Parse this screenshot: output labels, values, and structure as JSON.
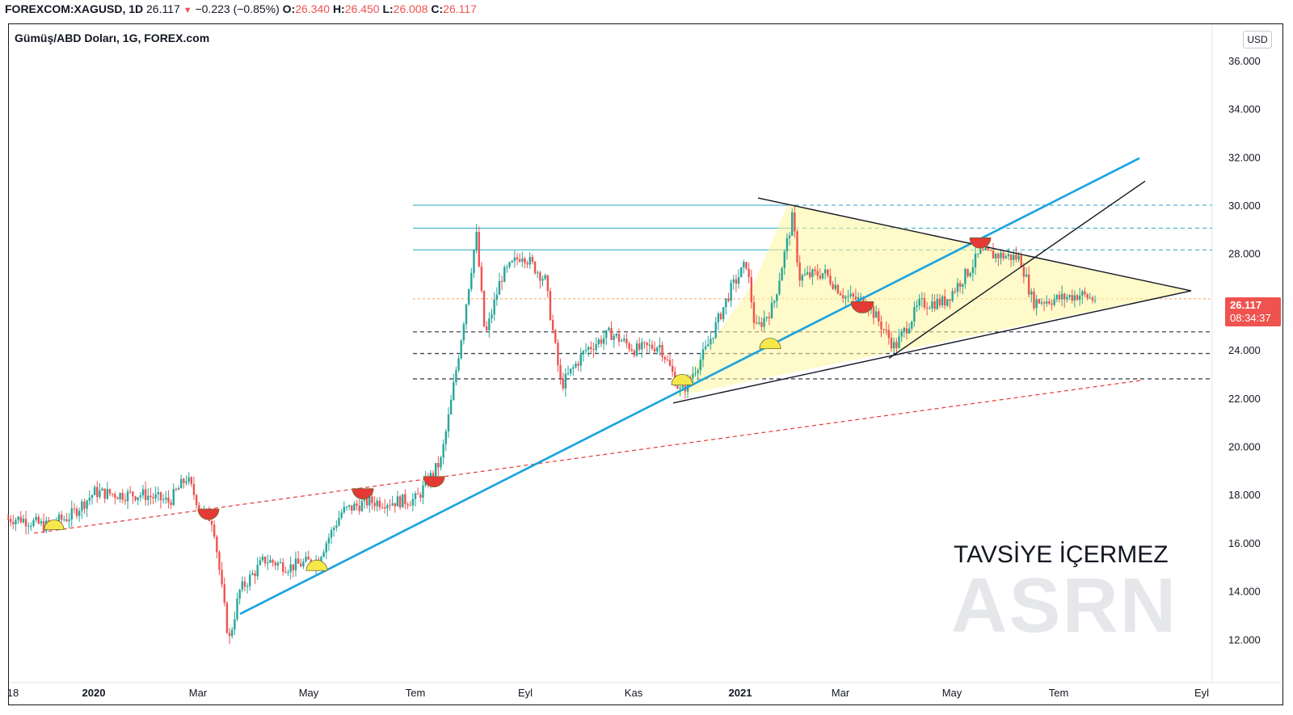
{
  "header": {
    "symbol": "FOREXCOM:XAGUSD, 1D",
    "last": "26.117",
    "change": "−0.223 (−0.85%)",
    "open_label": "O:",
    "open": "26.340",
    "high_label": "H:",
    "high": "26.450",
    "low_label": "L:",
    "low": "26.008",
    "close_label": "C:",
    "close": "26.117"
  },
  "chart_title": "Gümüş/ABD Doları, 1G, FOREX.com",
  "currency": "USD",
  "price_tag": {
    "price": "26.117",
    "timer": "08:34:37"
  },
  "note": "TAVSİYE İÇERMEZ",
  "watermark": "ASRN",
  "colors": {
    "up": "#26a69a",
    "down": "#ef5350",
    "trendline_blue": "#1ba3e0",
    "support_red": "#e53935",
    "triangle_fill": "#fff59d"
  },
  "chart_data": {
    "type": "candlestick",
    "title": "Gümüş/ABD Doları, 1G, FOREX.com",
    "x_tick_labels": [
      "18",
      "2020",
      "Mar",
      "May",
      "Tem",
      "Eyl",
      "Kas",
      "2021",
      "Mar",
      "May",
      "Tem",
      "Eyl"
    ],
    "y_tick_labels": [
      "12.000",
      "14.000",
      "16.000",
      "18.000",
      "20.000",
      "22.000",
      "24.000",
      "26.000",
      "28.000",
      "30.000",
      "32.000",
      "34.000",
      "36.000"
    ],
    "ylim": [
      11,
      37
    ],
    "last_price": 26.117,
    "horizontal_levels_solid": [
      30.0,
      29.05,
      28.15
    ],
    "horizontal_levels_dashed": [
      24.75,
      23.85,
      22.8
    ],
    "series": [
      {
        "values": [
          [
            "2019-11-22",
            17.0
          ],
          [
            "2019-12-06",
            16.7
          ],
          [
            "2019-12-20",
            17.1
          ],
          [
            "2020-01-03",
            18.1
          ],
          [
            "2020-01-17",
            18.0
          ],
          [
            "2020-01-31",
            18.0
          ],
          [
            "2020-02-14",
            17.7
          ],
          [
            "2020-02-24",
            18.7
          ],
          [
            "2020-03-03",
            17.4
          ],
          [
            "2020-03-10",
            16.9
          ],
          [
            "2020-03-16",
            13.5
          ],
          [
            "2020-03-19",
            11.9
          ],
          [
            "2020-03-25",
            14.0
          ],
          [
            "2020-04-08",
            15.3
          ],
          [
            "2020-04-22",
            15.0
          ],
          [
            "2020-05-08",
            15.3
          ],
          [
            "2020-05-22",
            17.3
          ],
          [
            "2020-06-05",
            17.7
          ],
          [
            "2020-06-19",
            17.7
          ],
          [
            "2020-07-03",
            17.8
          ],
          [
            "2020-07-17",
            19.4
          ],
          [
            "2020-07-22",
            21.5
          ],
          [
            "2020-07-28",
            24.3
          ],
          [
            "2020-08-06",
            28.8
          ],
          [
            "2020-08-11",
            24.5
          ],
          [
            "2020-08-20",
            27.0
          ],
          [
            "2020-09-01",
            28.0
          ],
          [
            "2020-09-14",
            26.9
          ],
          [
            "2020-09-23",
            22.5
          ],
          [
            "2020-10-07",
            24.0
          ],
          [
            "2020-10-21",
            24.7
          ],
          [
            "2020-11-04",
            24.0
          ],
          [
            "2020-11-18",
            24.2
          ],
          [
            "2020-11-30",
            22.2
          ],
          [
            "2020-12-14",
            24.0
          ],
          [
            "2020-12-28",
            26.5
          ],
          [
            "2021-01-06",
            27.6
          ],
          [
            "2021-01-11",
            24.8
          ],
          [
            "2021-01-21",
            25.8
          ],
          [
            "2021-02-01",
            29.5
          ],
          [
            "2021-02-05",
            27.0
          ],
          [
            "2021-02-19",
            27.2
          ],
          [
            "2021-03-03",
            26.2
          ],
          [
            "2021-03-15",
            26.0
          ],
          [
            "2021-03-31",
            24.1
          ],
          [
            "2021-04-14",
            25.9
          ],
          [
            "2021-04-28",
            26.0
          ],
          [
            "2021-05-12",
            27.3
          ],
          [
            "2021-05-18",
            28.0
          ],
          [
            "2021-06-01",
            27.9
          ],
          [
            "2021-06-10",
            27.8
          ],
          [
            "2021-06-17",
            26.0
          ],
          [
            "2021-06-30",
            26.1
          ],
          [
            "2021-07-14",
            26.3
          ],
          [
            "2021-07-21",
            26.117
          ]
        ]
      }
    ]
  }
}
